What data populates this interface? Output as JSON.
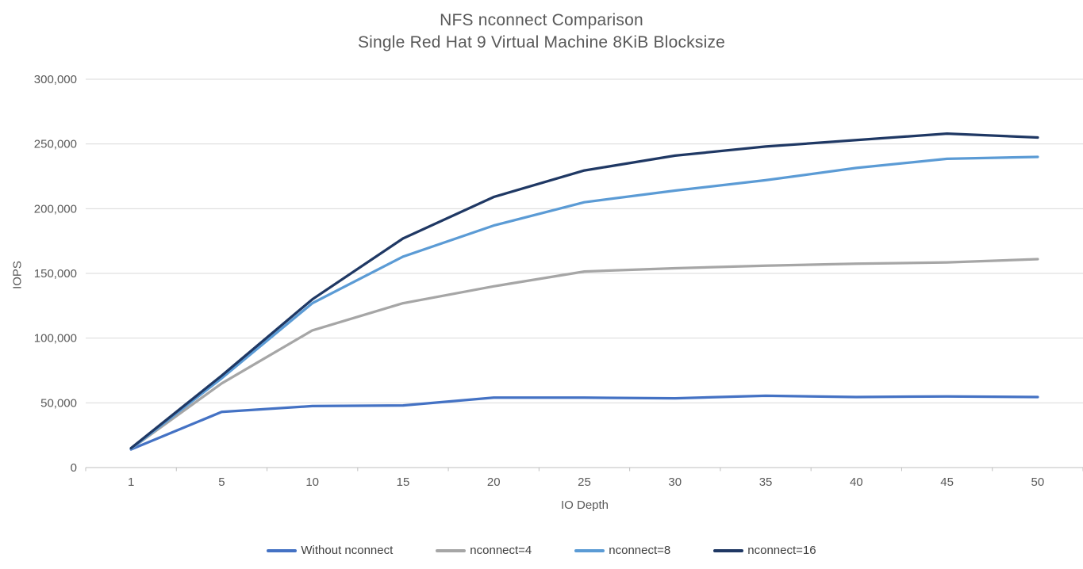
{
  "title": {
    "line1": "NFS nconnect Comparison",
    "line2": "Single Red Hat 9 Virtual Machine 8KiB Blocksize"
  },
  "chart_data": {
    "type": "line",
    "title": "NFS nconnect Comparison — Single Red Hat 9 Virtual Machine 8KiB Blocksize",
    "xlabel": "IO Depth",
    "ylabel": "IOPS",
    "x_categories": [
      1,
      5,
      10,
      15,
      20,
      25,
      30,
      35,
      40,
      45,
      50
    ],
    "ylim": [
      0,
      300000
    ],
    "ytick_step": 50000,
    "grid": true,
    "legend_position": "bottom",
    "series": [
      {
        "name": "Without nconnect",
        "color": "#4472C4",
        "values": [
          14000,
          43000,
          47500,
          48000,
          54000,
          54000,
          53500,
          55500,
          54500,
          55000,
          54500
        ]
      },
      {
        "name": "nconnect=4",
        "color": "#A6A6A6",
        "values": [
          14500,
          65000,
          106000,
          127000,
          140000,
          151500,
          154000,
          156000,
          157500,
          158500,
          161000
        ]
      },
      {
        "name": "nconnect=8",
        "color": "#5B9BD5",
        "values": [
          14500,
          69000,
          127000,
          163000,
          187000,
          205000,
          214000,
          222000,
          231500,
          238500,
          240000
        ]
      },
      {
        "name": "nconnect=16",
        "color": "#1F3864",
        "values": [
          15000,
          71000,
          130000,
          177000,
          209000,
          229500,
          241000,
          248000,
          253000,
          258000,
          255000
        ]
      }
    ],
    "style": {
      "grid_color": "#D9D9D9",
      "axis_color": "#BFBFBF",
      "tick_label_color": "#595959",
      "line_width": 3.25
    }
  }
}
